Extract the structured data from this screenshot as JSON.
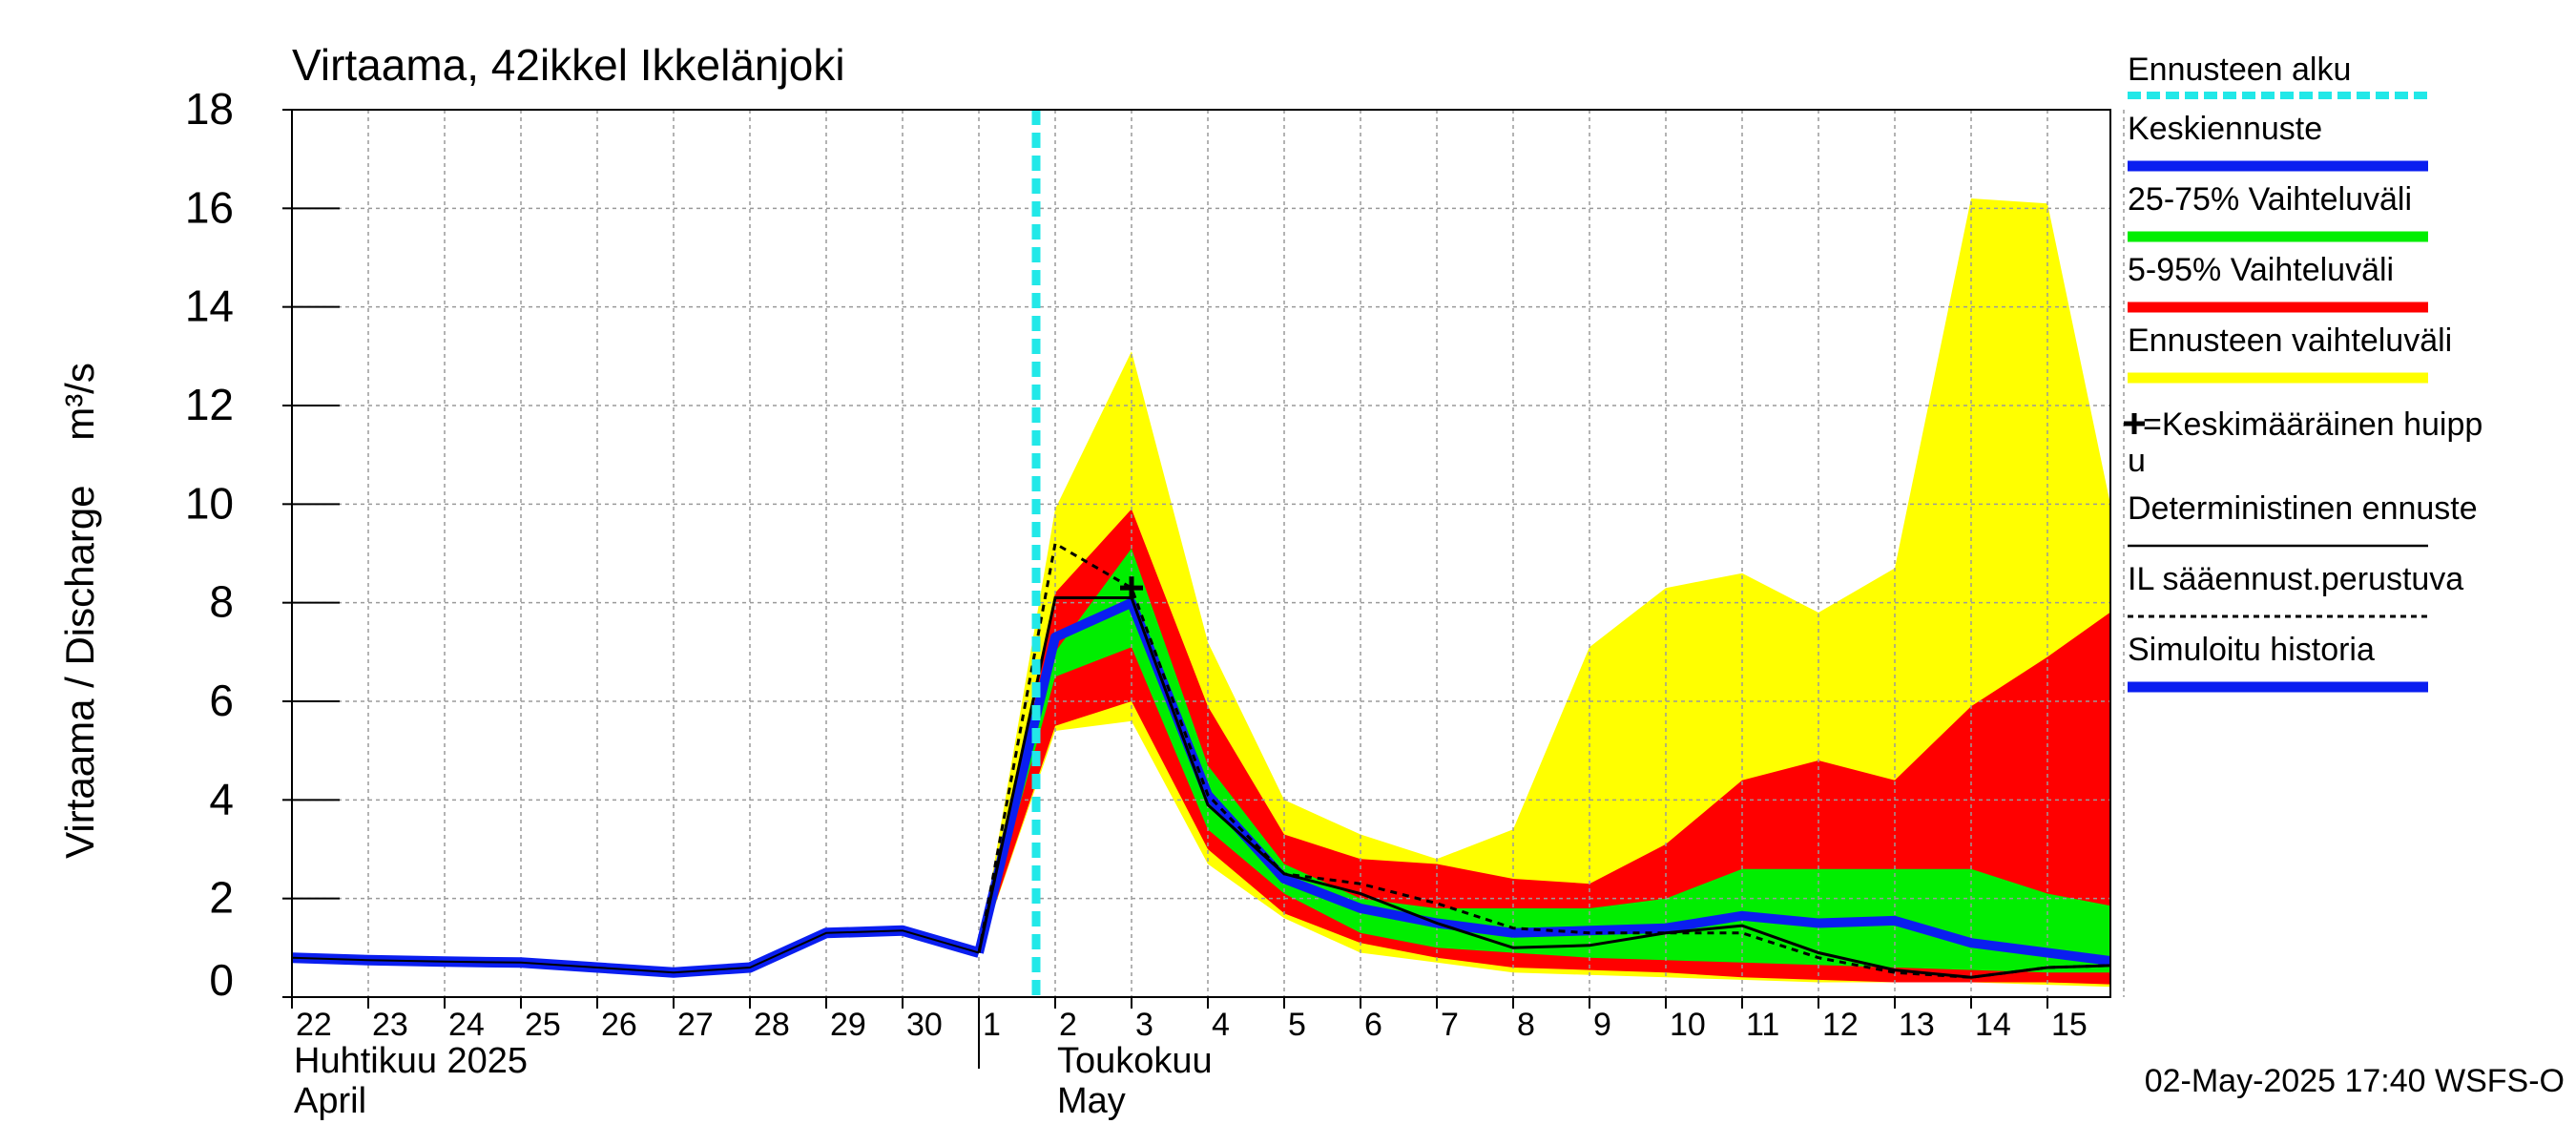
{
  "chart_data": {
    "type": "area",
    "title": "Virtaama, 42ikkel Ikkelänjoki",
    "ylabel": "Virtaama / Discharge    m³/s",
    "ylim": [
      0,
      18
    ],
    "yticks": [
      0,
      2,
      4,
      6,
      8,
      10,
      12,
      14,
      16,
      18
    ],
    "grid": true,
    "legend_position": "right",
    "x_start": "2025-04-22",
    "x_end": "2025-05-16",
    "day_labels": [
      "22",
      "23",
      "24",
      "25",
      "26",
      "27",
      "28",
      "29",
      "30",
      "1",
      "2",
      "3",
      "4",
      "5",
      "6",
      "7",
      "8",
      "9",
      "10",
      "11",
      "12",
      "13",
      "14",
      "15"
    ],
    "month_labels": [
      {
        "line1": "Huhtikuu  2025",
        "line2": "April",
        "at": "2025-04-22"
      },
      {
        "line1": "Toukokuu",
        "line2": "May",
        "at": "2025-05-02"
      }
    ],
    "forecast_start": "2025-05-02",
    "timestamp": "02-May-2025 17:40 WSFS-O",
    "x": [
      "2025-05-02",
      "2025-05-03",
      "2025-05-04",
      "2025-05-05",
      "2025-05-06",
      "2025-05-07",
      "2025-05-08",
      "2025-05-09",
      "2025-05-10",
      "2025-05-11",
      "2025-05-12",
      "2025-05-13",
      "2025-05-14",
      "2025-05-15",
      "2025-05-16"
    ],
    "bands": {
      "range": {
        "low": [
          5.4,
          5.6,
          2.7,
          1.6,
          0.9,
          0.7,
          0.5,
          0.45,
          0.4,
          0.35,
          0.3,
          0.3,
          0.3,
          0.25,
          0.2
        ],
        "high": [
          9.9,
          13.1,
          7.2,
          4.0,
          3.3,
          2.8,
          3.4,
          7.1,
          8.3,
          8.6,
          7.8,
          8.7,
          16.2,
          16.1,
          8.7
        ]
      },
      "p5_95": {
        "low": [
          5.5,
          6.0,
          3.0,
          1.7,
          1.1,
          0.8,
          0.6,
          0.55,
          0.5,
          0.4,
          0.35,
          0.3,
          0.3,
          0.3,
          0.25
        ],
        "high": [
          8.2,
          9.9,
          5.9,
          3.3,
          2.8,
          2.7,
          2.4,
          2.3,
          3.1,
          4.4,
          4.8,
          4.4,
          5.9,
          6.9,
          8.0
        ]
      },
      "p25_75": {
        "low": [
          6.5,
          7.1,
          3.4,
          2.1,
          1.3,
          1.0,
          0.9,
          0.8,
          0.75,
          0.7,
          0.65,
          0.6,
          0.55,
          0.5,
          0.5
        ],
        "high": [
          7.0,
          9.1,
          4.7,
          2.7,
          2.0,
          1.8,
          1.8,
          1.8,
          2.0,
          2.6,
          2.6,
          2.6,
          2.6,
          2.1,
          1.8
        ]
      }
    },
    "series": [
      {
        "name": "Keskiennuste",
        "x": [
          "2025-05-01",
          "2025-05-02",
          "2025-05-03",
          "2025-05-04",
          "2025-05-05",
          "2025-05-06",
          "2025-05-07",
          "2025-05-08",
          "2025-05-09",
          "2025-05-10",
          "2025-05-11",
          "2025-05-12",
          "2025-05-13",
          "2025-05-14",
          "2025-05-15",
          "2025-05-16"
        ],
        "values": [
          0.9,
          7.3,
          8.0,
          4.1,
          2.4,
          1.8,
          1.5,
          1.3,
          1.35,
          1.4,
          1.65,
          1.5,
          1.55,
          1.1,
          0.9,
          0.7
        ]
      },
      {
        "name": "Deterministinen ennuste",
        "x": [
          "2025-05-01",
          "2025-05-02",
          "2025-05-03",
          "2025-05-04",
          "2025-05-05",
          "2025-05-06",
          "2025-05-07",
          "2025-05-08",
          "2025-05-09",
          "2025-05-10",
          "2025-05-11",
          "2025-05-12",
          "2025-05-13",
          "2025-05-14",
          "2025-05-15",
          "2025-05-16"
        ],
        "values": [
          0.9,
          8.1,
          8.1,
          3.9,
          2.5,
          2.1,
          1.5,
          1.0,
          1.05,
          1.3,
          1.45,
          0.9,
          0.55,
          0.4,
          0.6,
          0.65
        ]
      },
      {
        "name": "IL sääennust.perustuva",
        "x": [
          "2025-05-01",
          "2025-05-02",
          "2025-05-03",
          "2025-05-04",
          "2025-05-05",
          "2025-05-06",
          "2025-05-07",
          "2025-05-08",
          "2025-05-09",
          "2025-05-10",
          "2025-05-11",
          "2025-05-12",
          "2025-05-13",
          "2025-05-14",
          "2025-05-15",
          "2025-05-16"
        ],
        "values": [
          0.9,
          9.2,
          8.3,
          4.1,
          2.5,
          2.3,
          1.9,
          1.4,
          1.3,
          1.3,
          1.3,
          0.8,
          0.5,
          0.4,
          0.6,
          0.65
        ]
      },
      {
        "name": "Simuloitu historia",
        "x": [
          "2025-04-22",
          "2025-04-23",
          "2025-04-24",
          "2025-04-25",
          "2025-04-26",
          "2025-04-27",
          "2025-04-28",
          "2025-04-29",
          "2025-04-30",
          "2025-05-01"
        ],
        "values": [
          0.8,
          0.75,
          0.72,
          0.7,
          0.6,
          0.5,
          0.6,
          1.3,
          1.35,
          0.9
        ]
      }
    ],
    "mean_peak": {
      "x": "2025-05-03",
      "y": 8.3
    },
    "legend": [
      {
        "label": "Ennusteen alku",
        "color": "#22e8e8",
        "style": "dashed"
      },
      {
        "label": "Keskiennuste",
        "color": "#0a1ef0",
        "style": "solid"
      },
      {
        "label": "25-75% Vaihteluväli",
        "color": "#00ee00",
        "style": "solid"
      },
      {
        "label": "5-95% Vaihteluväli",
        "color": "#ff0000",
        "style": "solid"
      },
      {
        "label": "Ennusteen vaihteluväli",
        "color": "#ffff00",
        "style": "solid"
      },
      {
        "label": "=Keskimääräinen huippu",
        "color": "#000000",
        "style": "marker"
      },
      {
        "label": "Deterministinen ennuste",
        "color": "#000000",
        "style": "thin"
      },
      {
        "label": "IL sääennust.perustuva",
        "color": "#000000",
        "style": "dotted"
      },
      {
        "label": "Simuloitu historia",
        "color": "#0a1ef0",
        "style": "solid"
      }
    ],
    "colors": {
      "range": "#ffff00",
      "p5_95": "#ff0000",
      "p25_75": "#00ee00",
      "mean": "#0a1ef0",
      "history": "#0a1ef0",
      "forecast_start": "#22e8e8",
      "grid": "#9a9a9a"
    }
  }
}
